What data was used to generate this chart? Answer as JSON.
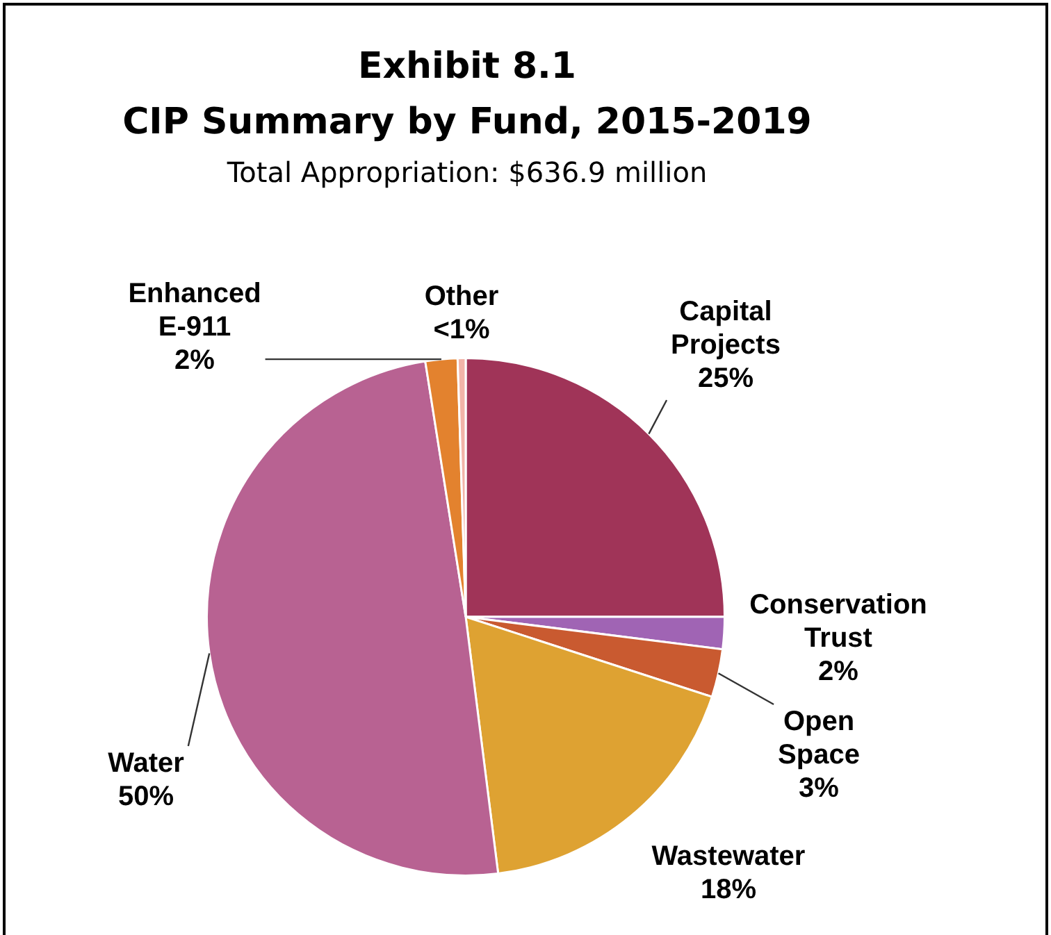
{
  "chart_data": {
    "type": "pie",
    "title": "Exhibit 8.1\nCIP Summary by Fund, 2015-2019",
    "subtitle": "Total Appropriation: $636.9 million",
    "categories": [
      "Capital\nProjects",
      "Conservation\nTrust",
      "Open\nSpace",
      "Wastewater",
      "Water",
      "Enhanced\nE-911",
      "Other"
    ],
    "values": [
      25,
      2,
      3,
      18,
      49.5,
      2,
      0.5
    ],
    "value_labels": [
      "25%",
      "2%",
      "3%",
      "18%",
      "50%",
      "2%",
      "<1%"
    ],
    "colors": [
      "#a03458",
      "#a064b4",
      "#c95a30",
      "#dea232",
      "#b86292",
      "#e3822e",
      "#f2b4a8"
    ],
    "legend": false
  }
}
